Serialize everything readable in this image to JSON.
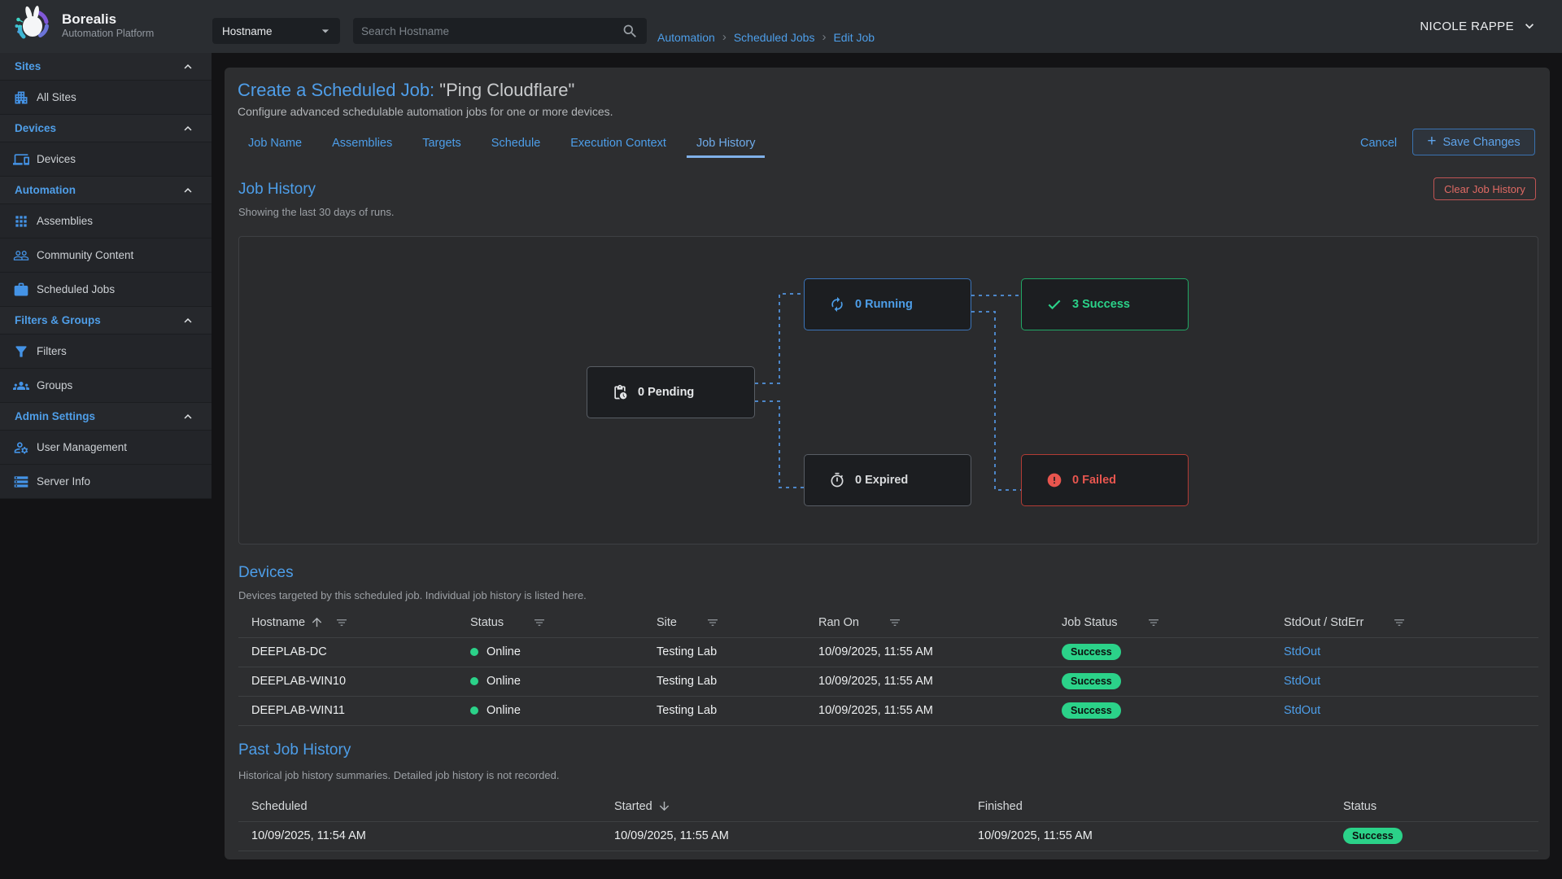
{
  "brand": {
    "name": "Borealis",
    "tagline": "Automation Platform"
  },
  "topbar": {
    "filter_select_value": "Hostname",
    "search_placeholder": "Search Hostname",
    "breadcrumbs": [
      "Automation",
      "Scheduled Jobs",
      "Edit Job"
    ],
    "user_name": "NICOLE RAPPE"
  },
  "sidebar": {
    "sections": [
      {
        "label": "Sites",
        "items": [
          {
            "icon": "building-icon",
            "label": "All Sites"
          }
        ]
      },
      {
        "label": "Devices",
        "items": [
          {
            "icon": "devices-icon",
            "label": "Devices"
          }
        ]
      },
      {
        "label": "Automation",
        "items": [
          {
            "icon": "grid-icon",
            "label": "Assemblies"
          },
          {
            "icon": "people-outline-icon",
            "label": "Community Content"
          },
          {
            "icon": "briefcase-icon",
            "label": "Scheduled Jobs"
          }
        ]
      },
      {
        "label": "Filters & Groups",
        "items": [
          {
            "icon": "filter-icon",
            "label": "Filters"
          },
          {
            "icon": "groups-icon",
            "label": "Groups"
          }
        ]
      },
      {
        "label": "Admin Settings",
        "items": [
          {
            "icon": "user-settings-icon",
            "label": "User Management"
          },
          {
            "icon": "server-icon",
            "label": "Server Info"
          }
        ]
      }
    ]
  },
  "job_editor": {
    "title_prefix": "Create a Scheduled Job:",
    "title_name": " \"Ping Cloudflare\"",
    "subtitle": "Configure advanced schedulable automation jobs for one or more devices.",
    "tabs": [
      "Job Name",
      "Assemblies",
      "Targets",
      "Schedule",
      "Execution Context",
      "Job History"
    ],
    "active_tab": "Job History",
    "cancel_label": "Cancel",
    "save_label": "Save Changes"
  },
  "job_history": {
    "heading": "Job History",
    "description": "Showing the last 30 days of runs.",
    "clear_button_label": "Clear Job History",
    "flow_nodes": [
      {
        "id": "pending",
        "label": "0 Pending",
        "count": 0,
        "color": "#e6e8ea"
      },
      {
        "id": "running",
        "label": "0 Running",
        "count": 0,
        "color": "#4d9ee9"
      },
      {
        "id": "success",
        "label": "3 Success",
        "count": 3,
        "color": "#2bd289"
      },
      {
        "id": "expired",
        "label": "0 Expired",
        "count": 0,
        "color": "#dadcde"
      },
      {
        "id": "failed",
        "label": "0 Failed",
        "count": 0,
        "color": "#e8564f"
      }
    ]
  },
  "devices_section": {
    "heading": "Devices",
    "description": "Devices targeted by this scheduled job. Individual job history is listed here.",
    "columns": [
      "Hostname",
      "Status",
      "Site",
      "Ran On",
      "Job Status",
      "StdOut / StdErr"
    ],
    "sort_column": "Hostname",
    "rows": [
      {
        "hostname": "DEEPLAB-DC",
        "status": "Online",
        "site": "Testing Lab",
        "ran_on": "10/09/2025, 11:55 AM",
        "job_status": "Success",
        "stdout_label": "StdOut"
      },
      {
        "hostname": "DEEPLAB-WIN10",
        "status": "Online",
        "site": "Testing Lab",
        "ran_on": "10/09/2025, 11:55 AM",
        "job_status": "Success",
        "stdout_label": "StdOut"
      },
      {
        "hostname": "DEEPLAB-WIN11",
        "status": "Online",
        "site": "Testing Lab",
        "ran_on": "10/09/2025, 11:55 AM",
        "job_status": "Success",
        "stdout_label": "StdOut"
      }
    ]
  },
  "past_history": {
    "heading": "Past Job History",
    "description": "Historical job history summaries. Detailed job history is not recorded.",
    "columns": [
      "Scheduled",
      "Started",
      "Finished",
      "Status"
    ],
    "sort_column": "Started",
    "rows": [
      {
        "scheduled": "10/09/2025, 11:54 AM",
        "started": "10/09/2025, 11:55 AM",
        "finished": "10/09/2025, 11:55 AM",
        "status": "Success"
      }
    ]
  },
  "colors": {
    "accent_blue": "#4d9ee9",
    "success_green": "#2bd289",
    "error_red": "#e8554e",
    "clear_red": "#e06a64"
  }
}
